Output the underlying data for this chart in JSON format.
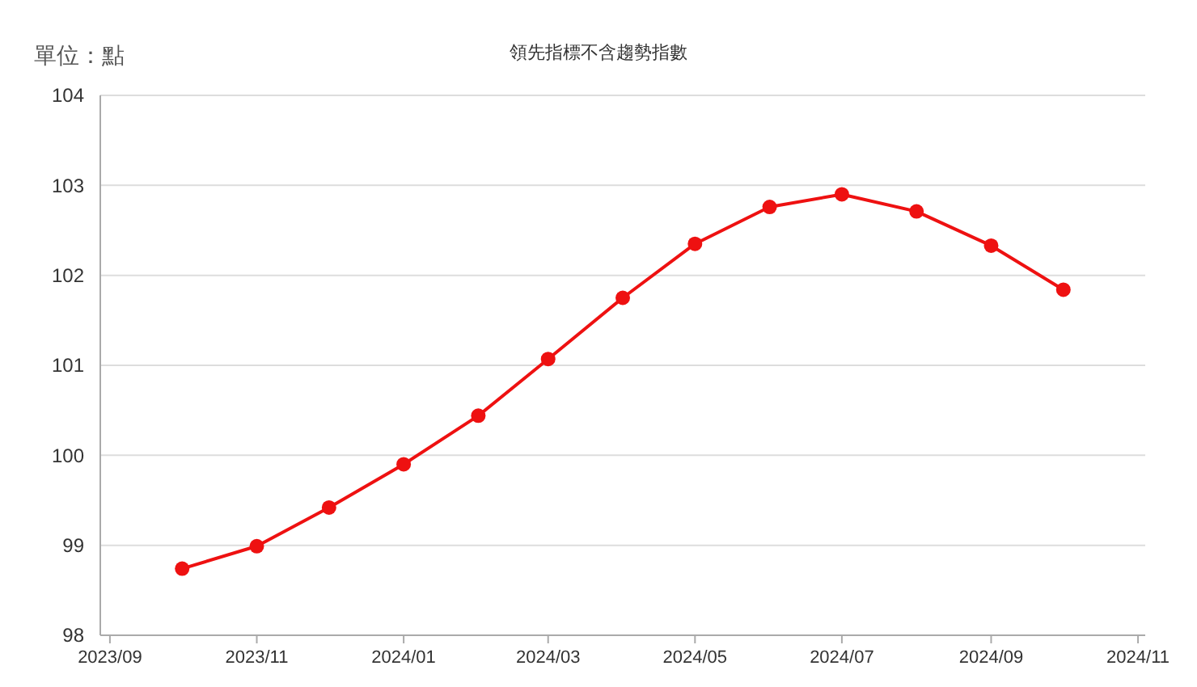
{
  "chart_data": {
    "type": "line",
    "title": "領先指標不含趨勢指數",
    "annotations": [
      "單位：點"
    ],
    "x": [
      "2023-10",
      "2023-11",
      "2023-12",
      "2024-01",
      "2024-02",
      "2024-03",
      "2024-04",
      "2024-05",
      "2024-06",
      "2024-07",
      "2024-08",
      "2024-09",
      "2024-10"
    ],
    "series": [
      {
        "color": "#ee1111",
        "values": [
          98.74,
          98.99,
          99.42,
          99.9,
          100.44,
          101.07,
          101.75,
          102.35,
          102.76,
          102.9,
          102.71,
          102.33,
          101.84
        ]
      }
    ],
    "xlim": [
      "2023-08-28",
      "2024-11-04"
    ],
    "xticks": [
      {
        "value": "2023-09",
        "label": "2023/09"
      },
      {
        "value": "2023-11",
        "label": "2023/11"
      },
      {
        "value": "2024-01",
        "label": "2024/01"
      },
      {
        "value": "2024-03",
        "label": "2024/03"
      },
      {
        "value": "2024-05",
        "label": "2024/05"
      },
      {
        "value": "2024-07",
        "label": "2024/07"
      },
      {
        "value": "2024-09",
        "label": "2024/09"
      },
      {
        "value": "2024-11",
        "label": "2024/11"
      }
    ],
    "ylim": [
      98,
      104
    ],
    "yticks": [
      98,
      99,
      100,
      101,
      102,
      103,
      104
    ],
    "grid": "y",
    "marker": "circle",
    "line_style": "solid"
  }
}
